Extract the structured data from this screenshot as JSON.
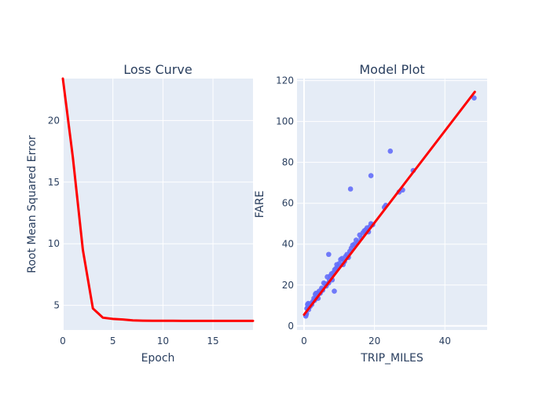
{
  "chart_data": [
    {
      "type": "line",
      "title": "Loss Curve",
      "xlabel": "Epoch",
      "ylabel": "Root Mean Squared Error",
      "xlim": [
        0,
        19
      ],
      "ylim": [
        3.0,
        23.4
      ],
      "xticks": [
        0,
        5,
        10,
        15
      ],
      "yticks": [
        5,
        10,
        15,
        20
      ],
      "grid": true,
      "series": [
        {
          "color": "#ff0000",
          "x": [
            0,
            1,
            2,
            3,
            4,
            5,
            6,
            7,
            8,
            9,
            10,
            11,
            12,
            13,
            14,
            15,
            16,
            17,
            18,
            19
          ],
          "values": [
            23.4,
            17.0,
            9.5,
            4.75,
            4.0,
            3.9,
            3.85,
            3.78,
            3.76,
            3.75,
            3.75,
            3.75,
            3.74,
            3.74,
            3.74,
            3.74,
            3.74,
            3.74,
            3.74,
            3.74
          ]
        }
      ]
    },
    {
      "type": "scatter",
      "title": "Model Plot",
      "xlabel": "TRIP_MILES",
      "ylabel": "FARE",
      "xlim": [
        -2,
        52
      ],
      "ylim": [
        -2,
        121
      ],
      "xticks": [
        0,
        20,
        40
      ],
      "yticks": [
        0,
        20,
        40,
        60,
        80,
        100,
        120
      ],
      "grid": true,
      "series": [
        {
          "marker_color": "#636efa",
          "x": [
            0.5,
            0.6,
            0.8,
            1.0,
            1.1,
            1.3,
            1.5,
            1.7,
            2.0,
            2.2,
            2.5,
            2.8,
            3.0,
            3.2,
            3.5,
            3.8,
            4.0,
            4.3,
            4.6,
            5.0,
            5.3,
            5.6,
            6.0,
            6.3,
            6.6,
            7.0,
            7.2,
            7.5,
            7.8,
            8.0,
            8.3,
            8.7,
            9.0,
            9.3,
            9.6,
            10.0,
            10.4,
            10.8,
            11.1,
            11.5,
            11.8,
            12.2,
            12.6,
            13.0,
            13.4,
            13.8,
            14.3,
            14.8,
            15.3,
            15.8,
            16.2,
            16.7,
            17.1,
            17.5,
            17.9,
            18.3,
            18.7,
            19.0,
            19.5,
            22.8,
            23.2,
            27.0,
            28.0,
            31.0,
            48.3,
            7.0,
            8.6,
            13.2,
            19.0,
            24.5,
            1.2,
            3.4,
            6.2,
            0.7
          ],
          "y": [
            4.8,
            5.5,
            8.5,
            10.5,
            9.0,
            8.0,
            10.0,
            9.5,
            11.0,
            10.5,
            12.0,
            13.5,
            12.5,
            15.5,
            14.0,
            16.0,
            13.5,
            17.0,
            16.0,
            18.5,
            17.5,
            21.0,
            20.5,
            19.5,
            24.0,
            21.0,
            22.5,
            24.5,
            25.5,
            22.5,
            26.0,
            27.5,
            28.0,
            30.0,
            29.0,
            30.5,
            32.5,
            33.0,
            30.0,
            31.5,
            34.0,
            35.0,
            33.5,
            36.5,
            38.0,
            39.5,
            40.0,
            42.0,
            41.0,
            44.5,
            43.0,
            45.5,
            46.5,
            47.0,
            48.0,
            46.0,
            48.5,
            50.0,
            49.5,
            58.0,
            59.0,
            65.5,
            66.5,
            76.0,
            111.5,
            35.0,
            17.0,
            67.0,
            73.5,
            85.5,
            11.0,
            16.0,
            20.5,
            6.0
          ]
        },
        {
          "type": "line",
          "color": "#ff0000",
          "x": [
            0,
            48.5
          ],
          "values": [
            5.5,
            114.5
          ]
        }
      ]
    }
  ]
}
